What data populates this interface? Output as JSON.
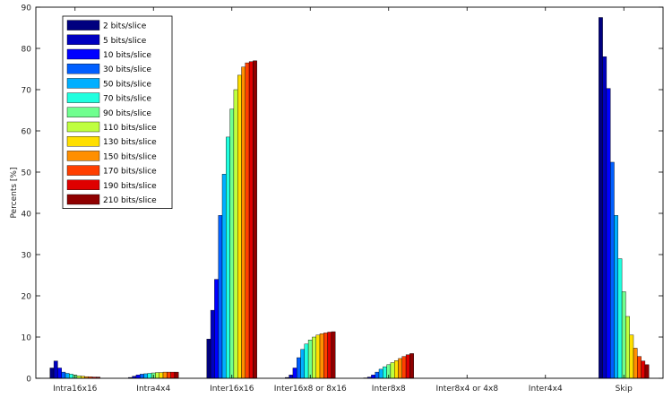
{
  "chart_data": {
    "type": "bar",
    "ylabel": "Percents [%]",
    "xlabel": "",
    "ylim": [
      0,
      90
    ],
    "yticks": [
      0,
      10,
      20,
      30,
      40,
      50,
      60,
      70,
      80,
      90
    ],
    "grid": false,
    "legend": "top-left",
    "categories": [
      "Intra16x16",
      "Intra4x4",
      "Inter16x16",
      "Inter16x8 or 8x16",
      "Inter8x8",
      "Inter8x4 or 4x8",
      "Inter4x4",
      "Skip"
    ],
    "series": [
      {
        "name": "2 bits/slice",
        "color": "#00007f",
        "values": [
          2.5,
          0.2,
          9.5,
          0.2,
          0.1,
          0.0,
          0.0,
          87.5
        ]
      },
      {
        "name": "5 bits/slice",
        "color": "#0000bf",
        "values": [
          4.2,
          0.5,
          16.5,
          0.8,
          0.3,
          0.0,
          0.0,
          78.0
        ]
      },
      {
        "name": "10 bits/slice",
        "color": "#0000ff",
        "values": [
          2.5,
          0.8,
          24.0,
          2.5,
          0.8,
          0.0,
          0.0,
          70.3
        ]
      },
      {
        "name": "30 bits/slice",
        "color": "#005fff",
        "values": [
          1.5,
          1.0,
          39.5,
          5.0,
          1.5,
          0.0,
          0.0,
          52.4
        ]
      },
      {
        "name": "50 bits/slice",
        "color": "#00afff",
        "values": [
          1.2,
          1.1,
          49.5,
          7.0,
          2.2,
          0.0,
          0.0,
          39.5
        ]
      },
      {
        "name": "70 bits/slice",
        "color": "#1fffdf",
        "values": [
          1.0,
          1.2,
          58.5,
          8.3,
          2.8,
          0.0,
          0.0,
          29.0
        ]
      },
      {
        "name": "90 bits/slice",
        "color": "#6fff8f",
        "values": [
          0.8,
          1.3,
          65.3,
          9.3,
          3.3,
          0.0,
          0.0,
          21.0
        ]
      },
      {
        "name": "110 bits/slice",
        "color": "#bfff3f",
        "values": [
          0.6,
          1.4,
          70.0,
          10.0,
          3.8,
          0.0,
          0.0,
          15.0
        ]
      },
      {
        "name": "130 bits/slice",
        "color": "#ffdf00",
        "values": [
          0.5,
          1.4,
          73.5,
          10.5,
          4.3,
          0.0,
          0.0,
          10.5
        ]
      },
      {
        "name": "150 bits/slice",
        "color": "#ff8f00",
        "values": [
          0.4,
          1.5,
          75.5,
          10.8,
          4.8,
          0.0,
          0.0,
          7.3
        ]
      },
      {
        "name": "170 bits/slice",
        "color": "#ff3f00",
        "values": [
          0.35,
          1.5,
          76.5,
          11.0,
          5.3,
          0.0,
          0.0,
          5.3
        ]
      },
      {
        "name": "190 bits/slice",
        "color": "#df0000",
        "values": [
          0.3,
          1.5,
          76.8,
          11.2,
          5.7,
          0.0,
          0.0,
          4.2
        ]
      },
      {
        "name": "210 bits/slice",
        "color": "#8f0000",
        "values": [
          0.3,
          1.5,
          77.0,
          11.3,
          6.0,
          0.0,
          0.0,
          3.3
        ]
      }
    ]
  }
}
